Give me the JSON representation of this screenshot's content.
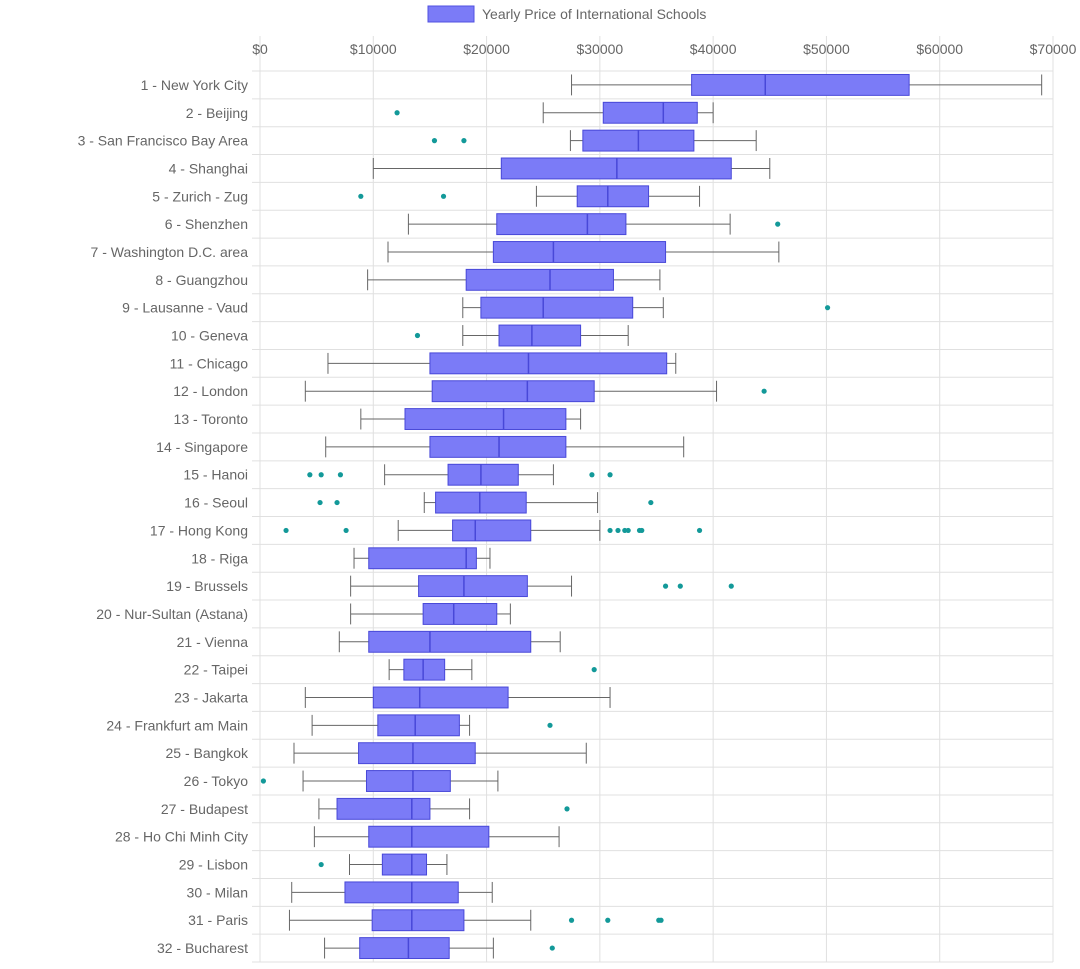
{
  "chart_data": {
    "type": "boxplot",
    "orientation": "horizontal",
    "legend": {
      "label": "Yearly Price of International Schools",
      "color": "#7b7bf7",
      "border_color": "#5050e0",
      "position": "top-center"
    },
    "colors": {
      "box_fill": "#7b7bf7",
      "box_border": "#4848d8",
      "whisker": "#666666",
      "outlier": "#139999",
      "grid": "#e0e0e0",
      "text": "#666666"
    },
    "x_axis": {
      "min": 0,
      "max": 70000,
      "tick_values": [
        0,
        10000,
        20000,
        30000,
        40000,
        50000,
        60000,
        70000
      ],
      "tick_labels": [
        "$0",
        "$10000",
        "$20000",
        "$30000",
        "$40000",
        "$50000",
        "$60000",
        "$70000"
      ],
      "grid": true
    },
    "categories": [
      "1 - New York City",
      "2 - Beijing",
      "3 - San Francisco Bay Area",
      "4 - Shanghai",
      "5 - Zurich - Zug",
      "6 - Shenzhen",
      "7 - Washington D.C. area",
      "8 - Guangzhou",
      "9 - Lausanne - Vaud",
      "10 - Geneva",
      "11 - Chicago",
      "12 - London",
      "13 - Toronto",
      "14 - Singapore",
      "15 - Hanoi",
      "16 - Seoul",
      "17 - Hong Kong",
      "18 - Riga",
      "19 - Brussels",
      "20 - Nur-Sultan (Astana)",
      "21 - Vienna",
      "22 - Taipei",
      "23 - Jakarta",
      "24 - Frankfurt am Main",
      "25 - Bangkok",
      "26 - Tokyo",
      "27 - Budapest",
      "28 - Ho Chi Minh City",
      "29 - Lisbon",
      "30 - Milan",
      "31 - Paris",
      "32 - Bucharest"
    ],
    "boxes": [
      {
        "min": 27500,
        "q1": 38100,
        "median": 44600,
        "q3": 57300,
        "max": 69000,
        "outliers": []
      },
      {
        "min": 25000,
        "q1": 30300,
        "median": 35600,
        "q3": 38600,
        "max": 40000,
        "outliers": [
          12100
        ]
      },
      {
        "min": 27400,
        "q1": 28500,
        "median": 33400,
        "q3": 38300,
        "max": 43800,
        "outliers": [
          15400,
          18000
        ]
      },
      {
        "min": 10000,
        "q1": 21300,
        "median": 31500,
        "q3": 41600,
        "max": 45000,
        "outliers": []
      },
      {
        "min": 24400,
        "q1": 28000,
        "median": 30700,
        "q3": 34300,
        "max": 38800,
        "outliers": [
          8900,
          16200
        ]
      },
      {
        "min": 13100,
        "q1": 20900,
        "median": 28900,
        "q3": 32300,
        "max": 41500,
        "outliers": [
          45700
        ]
      },
      {
        "min": 11300,
        "q1": 20600,
        "median": 25900,
        "q3": 35800,
        "max": 45800,
        "outliers": []
      },
      {
        "min": 9500,
        "q1": 18200,
        "median": 25600,
        "q3": 31200,
        "max": 35300,
        "outliers": []
      },
      {
        "min": 17900,
        "q1": 19500,
        "median": 25000,
        "q3": 32900,
        "max": 35600,
        "outliers": [
          50100
        ]
      },
      {
        "min": 17900,
        "q1": 21100,
        "median": 24000,
        "q3": 28300,
        "max": 32500,
        "outliers": [
          13900
        ]
      },
      {
        "min": 6000,
        "q1": 15000,
        "median": 23700,
        "q3": 35900,
        "max": 36700,
        "outliers": []
      },
      {
        "min": 4000,
        "q1": 15200,
        "median": 23600,
        "q3": 29500,
        "max": 40300,
        "outliers": [
          44500
        ]
      },
      {
        "min": 8900,
        "q1": 12800,
        "median": 21500,
        "q3": 27000,
        "max": 28300,
        "outliers": []
      },
      {
        "min": 5800,
        "q1": 15000,
        "median": 21100,
        "q3": 27000,
        "max": 37400,
        "outliers": []
      },
      {
        "min": 11000,
        "q1": 16600,
        "median": 19500,
        "q3": 22800,
        "max": 25900,
        "outliers": [
          4400,
          5400,
          7100,
          29300,
          30900
        ]
      },
      {
        "min": 14500,
        "q1": 15500,
        "median": 19400,
        "q3": 23500,
        "max": 29800,
        "outliers": [
          5300,
          6800,
          34500
        ]
      },
      {
        "min": 12200,
        "q1": 17000,
        "median": 19000,
        "q3": 23900,
        "max": 30000,
        "outliers": [
          2300,
          7600,
          30900,
          31600,
          32200,
          32500,
          33500,
          33700,
          38800
        ]
      },
      {
        "min": 8300,
        "q1": 9600,
        "median": 18200,
        "q3": 19100,
        "max": 20300,
        "outliers": []
      },
      {
        "min": 8000,
        "q1": 14000,
        "median": 18000,
        "q3": 23600,
        "max": 27500,
        "outliers": [
          35800,
          37100,
          41600
        ]
      },
      {
        "min": 8000,
        "q1": 14400,
        "median": 17100,
        "q3": 20900,
        "max": 22100,
        "outliers": []
      },
      {
        "min": 7000,
        "q1": 9600,
        "median": 15000,
        "q3": 23900,
        "max": 26500,
        "outliers": []
      },
      {
        "min": 11400,
        "q1": 12700,
        "median": 14400,
        "q3": 16300,
        "max": 18700,
        "outliers": [
          29500
        ]
      },
      {
        "min": 4000,
        "q1": 10000,
        "median": 14100,
        "q3": 21900,
        "max": 30900,
        "outliers": []
      },
      {
        "min": 4600,
        "q1": 10400,
        "median": 13700,
        "q3": 17600,
        "max": 18500,
        "outliers": [
          25600
        ]
      },
      {
        "min": 3000,
        "q1": 8700,
        "median": 13500,
        "q3": 19000,
        "max": 28800,
        "outliers": []
      },
      {
        "min": 3800,
        "q1": 9400,
        "median": 13500,
        "q3": 16800,
        "max": 21000,
        "outliers": [
          300
        ]
      },
      {
        "min": 5200,
        "q1": 6800,
        "median": 13400,
        "q3": 15000,
        "max": 18500,
        "outliers": [
          27100
        ]
      },
      {
        "min": 4800,
        "q1": 9600,
        "median": 13400,
        "q3": 20200,
        "max": 26400,
        "outliers": []
      },
      {
        "min": 7900,
        "q1": 10800,
        "median": 13400,
        "q3": 14700,
        "max": 16500,
        "outliers": [
          5400
        ]
      },
      {
        "min": 2800,
        "q1": 7500,
        "median": 13400,
        "q3": 17500,
        "max": 20500,
        "outliers": []
      },
      {
        "min": 2600,
        "q1": 9900,
        "median": 13400,
        "q3": 18000,
        "max": 23900,
        "outliers": [
          27500,
          30700,
          35200,
          35400
        ]
      },
      {
        "min": 5700,
        "q1": 8800,
        "median": 13100,
        "q3": 16700,
        "max": 20600,
        "outliers": [
          25800
        ]
      }
    ]
  }
}
